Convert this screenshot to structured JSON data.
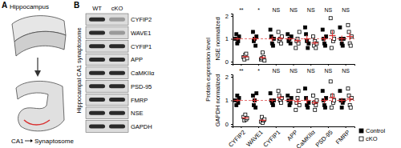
{
  "panels": {
    "a": {
      "label": "A",
      "title": "Hippocampus",
      "region": "CA1",
      "target": "Synaptosome"
    },
    "b": {
      "label": "B",
      "blot_title": "Hippocampal CA1 synaptosome",
      "lanes": [
        "WT",
        "cKO"
      ],
      "bands": [
        "CYFIP2",
        "WAVE1",
        "CYFIP1",
        "APP",
        "CaMKIIα",
        "PSD-95",
        "FMRP",
        "NSE",
        "GAPDH"
      ],
      "y_title": "Protein expression level"
    }
  },
  "chart_data": [
    {
      "type": "scatter",
      "y_label": "NSE normalized",
      "categories": [
        null,
        null,
        null,
        null,
        null,
        null,
        null
      ],
      "ylim": [
        -0.1,
        2.1
      ],
      "yticks": [
        0,
        1,
        2
      ],
      "reference_line": 1,
      "significance": [
        "**",
        "*",
        "NS",
        "NS",
        "NS",
        "NS",
        "NS"
      ],
      "series": [
        {
          "name": "Control",
          "color": "#000000",
          "marker": "filled-square",
          "values": [
            [
              1.0,
              1.2,
              0.8,
              0.9,
              1.1
            ],
            [
              1.3,
              0.9,
              1.0,
              0.7,
              1.1
            ],
            [
              1.4,
              1.1,
              0.8,
              0.7,
              1.0
            ],
            [
              1.2,
              0.9,
              1.0,
              0.8,
              1.1
            ],
            [
              1.5,
              1.2,
              0.9,
              0.6,
              0.8
            ],
            [
              1.4,
              1.0,
              0.8,
              0.7,
              1.1
            ],
            [
              1.5,
              1.0,
              0.8,
              0.7,
              1.0
            ]
          ],
          "mean": [
            1.0,
            1.0,
            1.0,
            1.0,
            1.0,
            1.0,
            1.0
          ],
          "error": [
            0.07,
            0.1,
            0.12,
            0.07,
            0.16,
            0.12,
            0.14
          ]
        },
        {
          "name": "cKO",
          "color": "#000000",
          "marker": "open-square",
          "values": [
            [
              0.2,
              0.1,
              0.3,
              0.35,
              0.15
            ],
            [
              0.1,
              0.15,
              0.4,
              0.2,
              0.05
            ],
            [
              1.3,
              0.9,
              1.0,
              0.8,
              1.1
            ],
            [
              0.6,
              0.9,
              1.0,
              0.8,
              1.3
            ],
            [
              1.1,
              0.7,
              0.9,
              0.6,
              0.8
            ],
            [
              1.9,
              0.6,
              1.3,
              0.9,
              1.0
            ],
            [
              1.6,
              1.3,
              0.8,
              0.7,
              1.1
            ]
          ],
          "mean": [
            0.22,
            0.18,
            1.02,
            0.92,
            0.82,
            1.14,
            1.1
          ],
          "error": [
            0.05,
            0.06,
            0.09,
            0.11,
            0.09,
            0.22,
            0.17
          ]
        }
      ]
    },
    {
      "type": "scatter",
      "y_label": "GAPDH normalized",
      "categories": [
        "CYFIP2",
        "WAVE1",
        "CYFIP1",
        "APP",
        "CaMKIIα",
        "PSD-95",
        "FMRP"
      ],
      "ylim": [
        -0.1,
        2.1
      ],
      "yticks": [
        0,
        1,
        2
      ],
      "reference_line": 1,
      "legend": "right",
      "significance": [
        "**",
        "*",
        "NS",
        "NS",
        "NS",
        "NS",
        "NS"
      ],
      "series": [
        {
          "name": "Control",
          "color": "#000000",
          "marker": "filled-square",
          "values": [
            [
              1.0,
              0.8,
              1.2,
              0.9,
              1.1
            ],
            [
              1.2,
              0.8,
              1.0,
              0.7,
              1.3
            ],
            [
              1.3,
              1.0,
              0.9,
              0.8,
              1.0
            ],
            [
              1.2,
              1.0,
              0.8,
              0.9,
              1.1
            ],
            [
              1.5,
              1.1,
              0.8,
              0.7,
              0.9
            ],
            [
              1.4,
              1.0,
              0.8,
              0.7,
              1.1
            ],
            [
              1.4,
              1.0,
              0.7,
              0.9,
              1.0
            ]
          ],
          "mean": [
            1.0,
            1.0,
            1.0,
            1.0,
            1.0,
            1.0,
            1.0
          ],
          "error": [
            0.07,
            0.11,
            0.08,
            0.07,
            0.14,
            0.12,
            0.11
          ]
        },
        {
          "name": "cKO",
          "color": "#000000",
          "marker": "open-square",
          "values": [
            [
              0.3,
              0.15,
              0.4,
              0.2,
              0.25
            ],
            [
              0.1,
              0.3,
              0.05,
              0.15,
              0.2
            ],
            [
              1.4,
              1.2,
              1.0,
              0.9,
              1.1
            ],
            [
              0.6,
              0.9,
              1.1,
              1.4,
              0.8
            ],
            [
              1.2,
              0.9,
              0.6,
              0.8,
              1.0
            ],
            [
              1.8,
              0.7,
              1.2,
              0.9,
              1.0
            ],
            [
              1.5,
              1.2,
              0.8,
              0.7,
              1.1
            ]
          ],
          "mean": [
            0.26,
            0.16,
            1.12,
            0.96,
            0.9,
            1.12,
            1.06
          ],
          "error": [
            0.04,
            0.04,
            0.09,
            0.14,
            0.1,
            0.19,
            0.14
          ]
        }
      ]
    }
  ]
}
